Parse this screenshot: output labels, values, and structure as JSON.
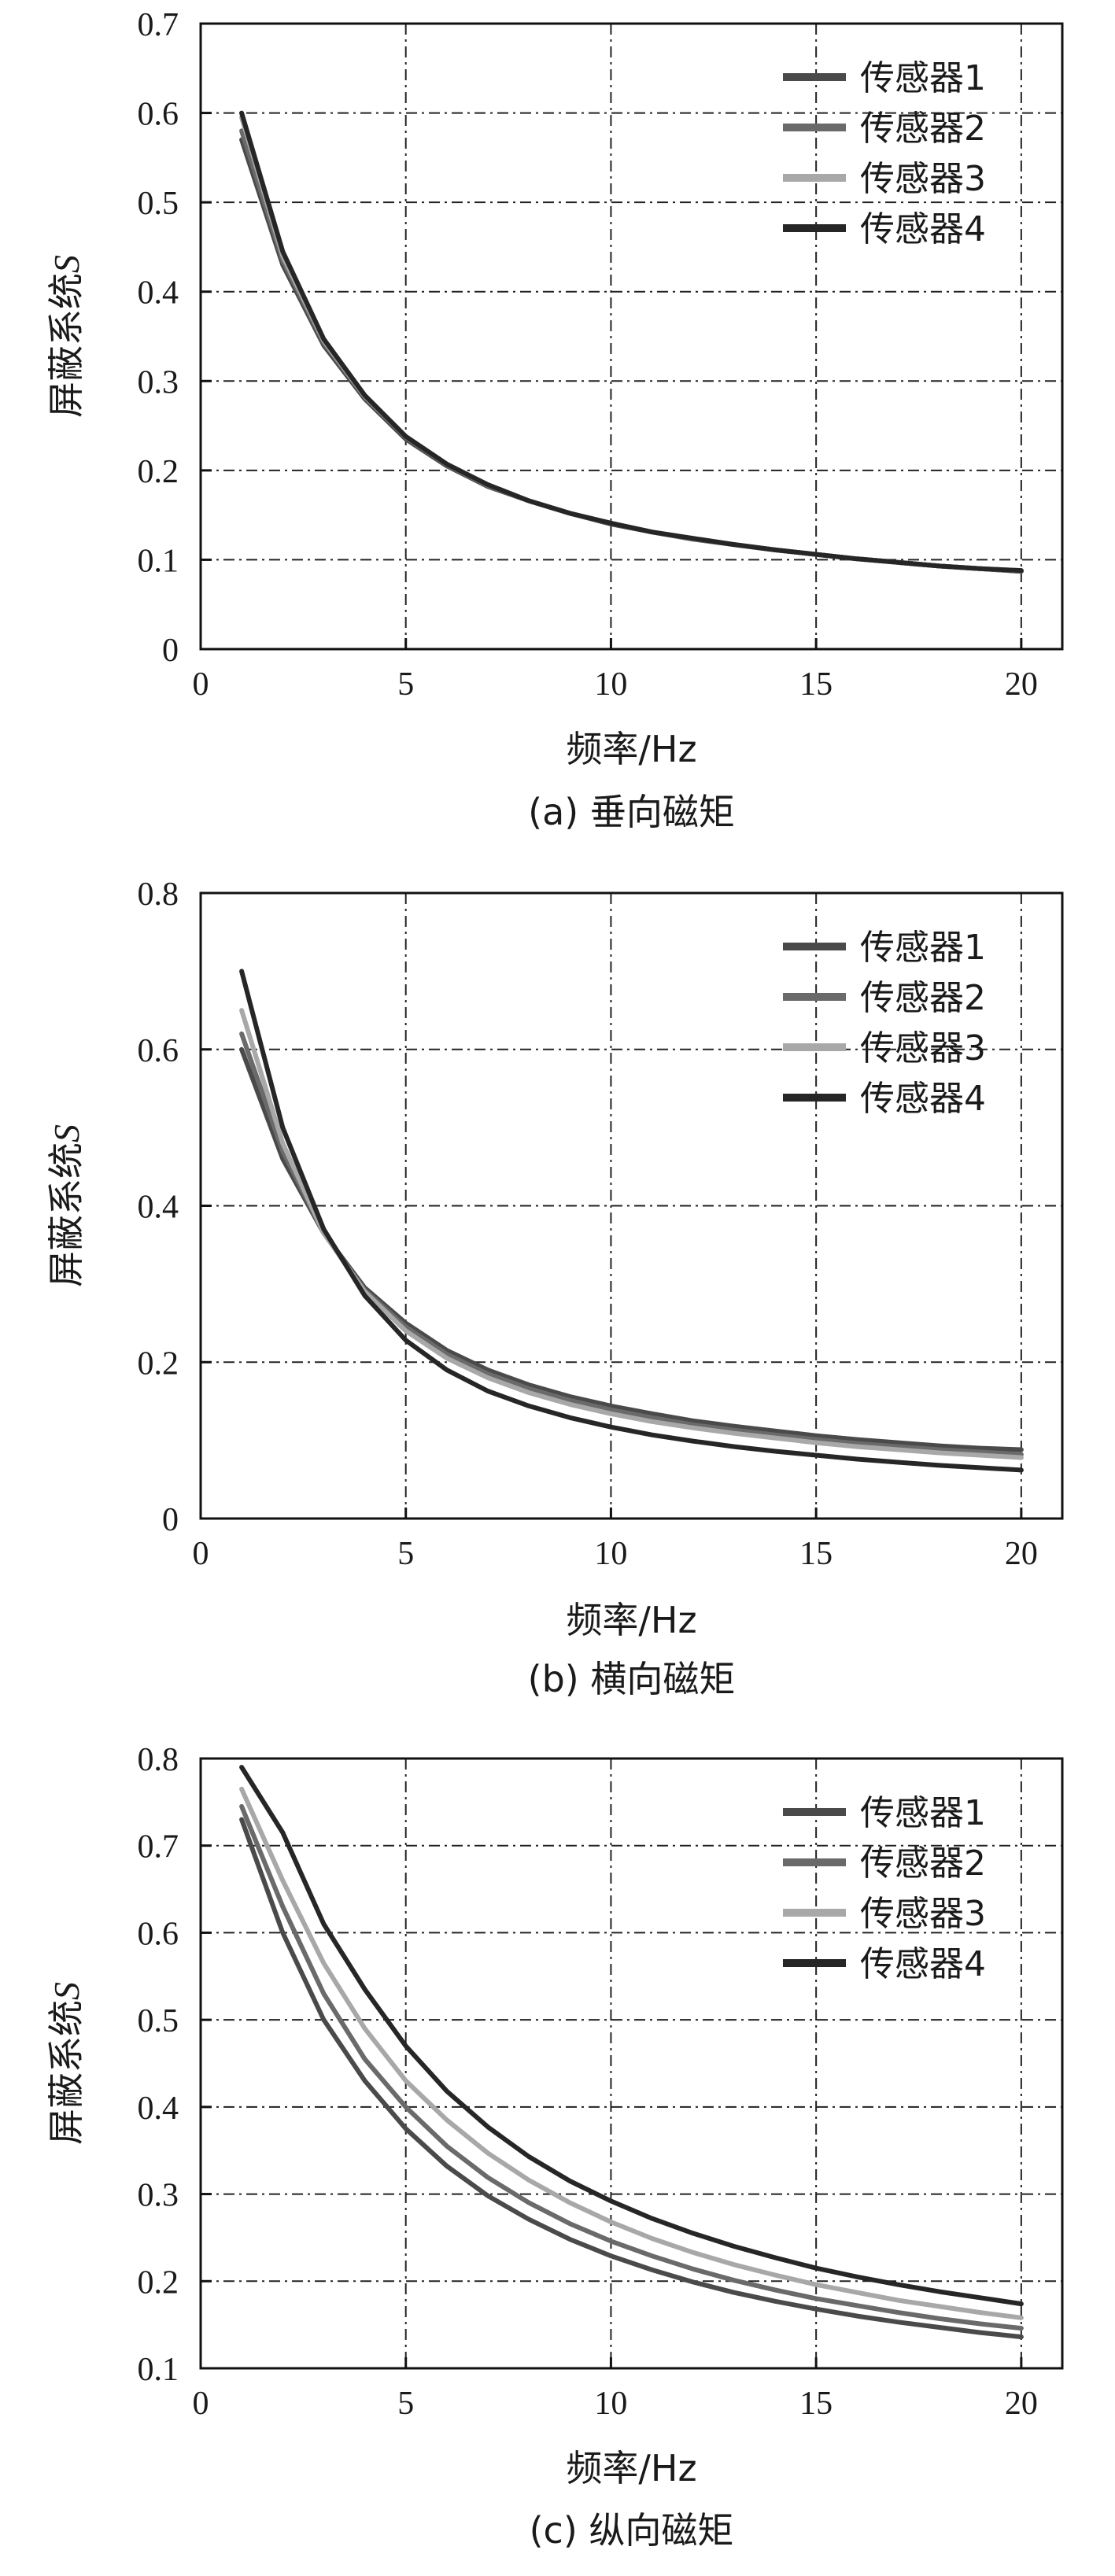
{
  "chart_data": [
    {
      "type": "line",
      "caption": "(a) 垂向磁矩",
      "xlabel": "频率/Hz",
      "ylabel": "屏蔽系统",
      "ylabel_symbol": "S",
      "xlim": [
        0,
        21
      ],
      "ylim": [
        0,
        0.7
      ],
      "xticks": [
        "0",
        "5",
        "10",
        "15",
        "20"
      ],
      "yticks": [
        "0",
        "0.1",
        "0.2",
        "0.3",
        "0.4",
        "0.5",
        "0.6",
        "0.7"
      ],
      "grid": true,
      "legend_position": "top-right",
      "x": [
        1,
        2,
        3,
        4,
        5,
        6,
        7,
        8,
        9,
        10,
        11,
        12,
        13,
        14,
        15,
        16,
        17,
        18,
        19,
        20
      ],
      "series": [
        {
          "name": "传感器1",
          "color": "#4a4a4a",
          "values": [
            0.57,
            0.43,
            0.34,
            0.28,
            0.235,
            0.205,
            0.182,
            0.166,
            0.152,
            0.14,
            0.131,
            0.123,
            0.117,
            0.111,
            0.106,
            0.101,
            0.097,
            0.093,
            0.09,
            0.087
          ]
        },
        {
          "name": "传感器2",
          "color": "#6a6a6a",
          "values": [
            0.58,
            0.435,
            0.343,
            0.282,
            0.237,
            0.206,
            0.183,
            0.166,
            0.152,
            0.141,
            0.131,
            0.123,
            0.117,
            0.111,
            0.106,
            0.101,
            0.097,
            0.093,
            0.09,
            0.087
          ]
        },
        {
          "name": "传感器3",
          "color": "#a8a8a8",
          "values": [
            0.595,
            0.44,
            0.345,
            0.283,
            0.238,
            0.207,
            0.184,
            0.166,
            0.152,
            0.141,
            0.131,
            0.124,
            0.117,
            0.111,
            0.106,
            0.101,
            0.097,
            0.093,
            0.09,
            0.088
          ]
        },
        {
          "name": "传感器4",
          "color": "#262626",
          "values": [
            0.6,
            0.445,
            0.347,
            0.284,
            0.238,
            0.207,
            0.184,
            0.166,
            0.152,
            0.141,
            0.131,
            0.124,
            0.117,
            0.111,
            0.106,
            0.101,
            0.097,
            0.093,
            0.09,
            0.088
          ]
        }
      ]
    },
    {
      "type": "line",
      "caption": "(b) 横向磁矩",
      "xlabel": "频率/Hz",
      "ylabel": "屏蔽系统",
      "ylabel_symbol": "S",
      "xlim": [
        0,
        21
      ],
      "ylim": [
        0,
        0.8
      ],
      "xticks": [
        "0",
        "5",
        "10",
        "15",
        "20"
      ],
      "yticks": [
        "0",
        "0.2",
        "0.4",
        "0.6",
        "0.8"
      ],
      "grid": true,
      "legend_position": "top-right",
      "x": [
        1,
        2,
        3,
        4,
        5,
        6,
        7,
        8,
        9,
        10,
        11,
        12,
        13,
        14,
        15,
        16,
        17,
        18,
        19,
        20
      ],
      "series": [
        {
          "name": "传感器1",
          "color": "#4a4a4a",
          "values": [
            0.6,
            0.46,
            0.365,
            0.295,
            0.25,
            0.215,
            0.19,
            0.171,
            0.156,
            0.144,
            0.134,
            0.125,
            0.118,
            0.112,
            0.106,
            0.101,
            0.097,
            0.093,
            0.09,
            0.088
          ]
        },
        {
          "name": "传感器2",
          "color": "#6a6a6a",
          "values": [
            0.62,
            0.47,
            0.365,
            0.292,
            0.245,
            0.21,
            0.185,
            0.166,
            0.151,
            0.139,
            0.129,
            0.12,
            0.113,
            0.107,
            0.101,
            0.096,
            0.092,
            0.088,
            0.085,
            0.082
          ]
        },
        {
          "name": "传感器3",
          "color": "#a8a8a8",
          "values": [
            0.65,
            0.48,
            0.365,
            0.29,
            0.24,
            0.205,
            0.18,
            0.161,
            0.146,
            0.134,
            0.124,
            0.116,
            0.109,
            0.103,
            0.097,
            0.092,
            0.088,
            0.084,
            0.081,
            0.078
          ]
        },
        {
          "name": "传感器4",
          "color": "#262626",
          "values": [
            0.7,
            0.5,
            0.37,
            0.285,
            0.228,
            0.19,
            0.163,
            0.144,
            0.129,
            0.117,
            0.107,
            0.099,
            0.092,
            0.086,
            0.081,
            0.076,
            0.072,
            0.068,
            0.065,
            0.062
          ]
        }
      ]
    },
    {
      "type": "line",
      "caption": "(c) 纵向磁矩",
      "xlabel": "频率/Hz",
      "ylabel": "屏蔽系统",
      "ylabel_symbol": "S",
      "xlim": [
        0,
        21
      ],
      "ylim": [
        0.1,
        0.8
      ],
      "xticks": [
        "0",
        "5",
        "10",
        "15",
        "20"
      ],
      "yticks": [
        "0.1",
        "0.2",
        "0.3",
        "0.4",
        "0.5",
        "0.6",
        "0.7",
        "0.8"
      ],
      "grid": true,
      "legend_position": "top-right",
      "x": [
        1,
        2,
        3,
        4,
        5,
        6,
        7,
        8,
        9,
        10,
        11,
        12,
        13,
        14,
        15,
        16,
        17,
        18,
        19,
        20
      ],
      "series": [
        {
          "name": "传感器1",
          "color": "#4a4a4a",
          "values": [
            0.73,
            0.6,
            0.5,
            0.43,
            0.375,
            0.332,
            0.298,
            0.271,
            0.248,
            0.229,
            0.213,
            0.199,
            0.187,
            0.177,
            0.168,
            0.16,
            0.153,
            0.147,
            0.141,
            0.136
          ]
        },
        {
          "name": "传感器2",
          "color": "#6a6a6a",
          "values": [
            0.745,
            0.63,
            0.53,
            0.455,
            0.4,
            0.355,
            0.319,
            0.29,
            0.266,
            0.246,
            0.229,
            0.214,
            0.201,
            0.19,
            0.18,
            0.172,
            0.164,
            0.157,
            0.151,
            0.146
          ]
        },
        {
          "name": "传感器3",
          "color": "#a8a8a8",
          "values": [
            0.765,
            0.66,
            0.565,
            0.49,
            0.43,
            0.385,
            0.347,
            0.316,
            0.29,
            0.268,
            0.249,
            0.233,
            0.219,
            0.207,
            0.196,
            0.187,
            0.178,
            0.171,
            0.164,
            0.158
          ]
        },
        {
          "name": "传感器4",
          "color": "#262626",
          "values": [
            0.79,
            0.715,
            0.61,
            0.535,
            0.47,
            0.418,
            0.377,
            0.343,
            0.315,
            0.292,
            0.272,
            0.255,
            0.24,
            0.227,
            0.215,
            0.205,
            0.196,
            0.188,
            0.181,
            0.174
          ]
        }
      ]
    }
  ]
}
